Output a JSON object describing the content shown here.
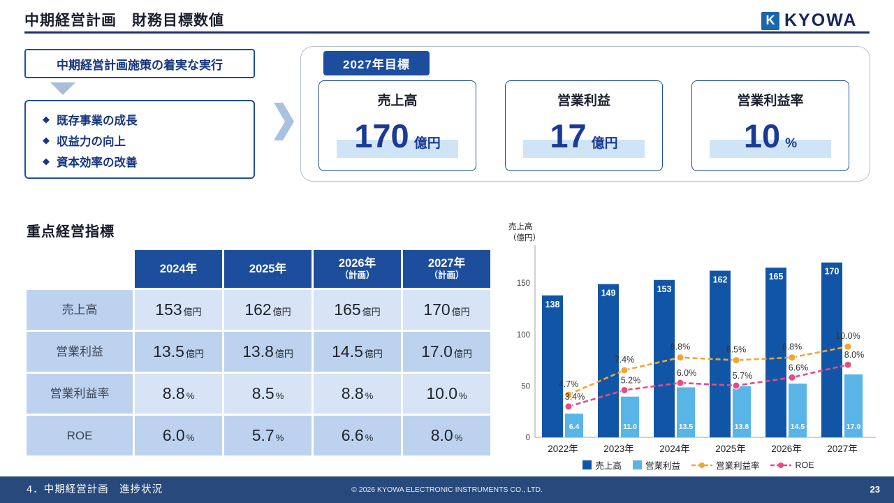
{
  "palette": {
    "primary_navy": "#1d4e9e",
    "bar_blue": "#1156a6",
    "light_blue": "#5ab5e7",
    "orange": "#f2a434",
    "pink": "#e94a80",
    "highlight_blue": "#cfe5f7",
    "footer_navy": "#27497c"
  },
  "header": {
    "title": "中期経営計画　財務目標数値",
    "logo_text": "KYOWA"
  },
  "strategy": {
    "box_title": "中期経営計画施策の着実な実行",
    "bullet_icon": "◆",
    "bullets": [
      "既存事業の成長",
      "収益力の向上",
      "資本効率の改善"
    ]
  },
  "targets": {
    "badge": "2027年目標",
    "cards": [
      {
        "label": "売上高",
        "value": "170",
        "unit": "億円"
      },
      {
        "label": "営業利益",
        "value": "17",
        "unit": "億円"
      },
      {
        "label": "営業利益率",
        "value": "10",
        "unit": "%"
      }
    ]
  },
  "kpi_table": {
    "title": "重点経営指標",
    "columns": [
      {
        "label": "2024年",
        "sub": ""
      },
      {
        "label": "2025年",
        "sub": ""
      },
      {
        "label": "2026年",
        "sub": "（計画）"
      },
      {
        "label": "2027年",
        "sub": "（計画）"
      }
    ],
    "rows": [
      {
        "label": "売上高",
        "cells": [
          {
            "v": "153",
            "u": "億円"
          },
          {
            "v": "162",
            "u": "億円"
          },
          {
            "v": "165",
            "u": "億円"
          },
          {
            "v": "170",
            "u": "億円"
          }
        ]
      },
      {
        "label": "営業利益",
        "cells": [
          {
            "v": "13.5",
            "u": "億円"
          },
          {
            "v": "13.8",
            "u": "億円"
          },
          {
            "v": "14.5",
            "u": "億円"
          },
          {
            "v": "17.0",
            "u": "億円"
          }
        ]
      },
      {
        "label": "営業利益率",
        "cells": [
          {
            "v": "8.8",
            "u": "%"
          },
          {
            "v": "8.5",
            "u": "%"
          },
          {
            "v": "8.8",
            "u": "%"
          },
          {
            "v": "10.0",
            "u": "%"
          }
        ]
      },
      {
        "label": "ROE",
        "cells": [
          {
            "v": "6.0",
            "u": "%"
          },
          {
            "v": "5.7",
            "u": "%"
          },
          {
            "v": "6.6",
            "u": "%"
          },
          {
            "v": "8.0",
            "u": "%"
          }
        ]
      }
    ]
  },
  "chart_data": {
    "type": "combo",
    "ylabel_lines": [
      "売上高",
      "（億円）"
    ],
    "categories": [
      "2022年",
      "2023年",
      "2024年",
      "2025年",
      "2026年",
      "2027年"
    ],
    "series": [
      {
        "name": "売上高",
        "type": "bar",
        "axis": "left_oku_yen",
        "color": "#1156a6",
        "values": [
          138,
          149,
          153,
          162,
          165,
          170
        ],
        "labels": [
          "138",
          "149",
          "153",
          "162",
          "165",
          "170"
        ]
      },
      {
        "name": "営業利益",
        "type": "bar",
        "axis": "hidden_oku_yen",
        "color": "#5ab5e7",
        "values": [
          6.4,
          11.0,
          13.5,
          13.8,
          14.5,
          17.0
        ],
        "labels": [
          "6.4",
          "11.0",
          "13.5",
          "13.8",
          "14.5",
          "17.0"
        ]
      },
      {
        "name": "営業利益率",
        "type": "line",
        "axis": "hidden_percent",
        "color": "#f2a434",
        "values": [
          4.7,
          7.4,
          8.8,
          8.5,
          8.8,
          10.0
        ],
        "labels": [
          "4.7%",
          "7.4%",
          "8.8%",
          "8.5%",
          "8.8%",
          "10.0%"
        ]
      },
      {
        "name": "ROE",
        "type": "line",
        "axis": "hidden_percent",
        "color": "#e94a80",
        "values": [
          3.4,
          5.2,
          6.0,
          5.7,
          6.6,
          8.0
        ],
        "labels": [
          "3.4%",
          "5.2%",
          "6.0%",
          "5.7%",
          "6.6%",
          "8.0%"
        ]
      }
    ],
    "primary_axis": {
      "min": 0,
      "max": 180,
      "ticks": [
        0,
        50,
        100,
        150
      ]
    },
    "secondary_bar_axis": {
      "min": 0,
      "max": 50
    },
    "secondary_line_axis": {
      "min": 0,
      "max": 17,
      "aligned_to_primary_tick": 150
    },
    "legend_position": "bottom",
    "grid": false
  },
  "footer": {
    "section": "4．中期経営計画　進捗状況",
    "copyright": "© 2026 KYOWA ELECTRONIC INSTRUMENTS CO., LTD.",
    "page_number": "23"
  }
}
